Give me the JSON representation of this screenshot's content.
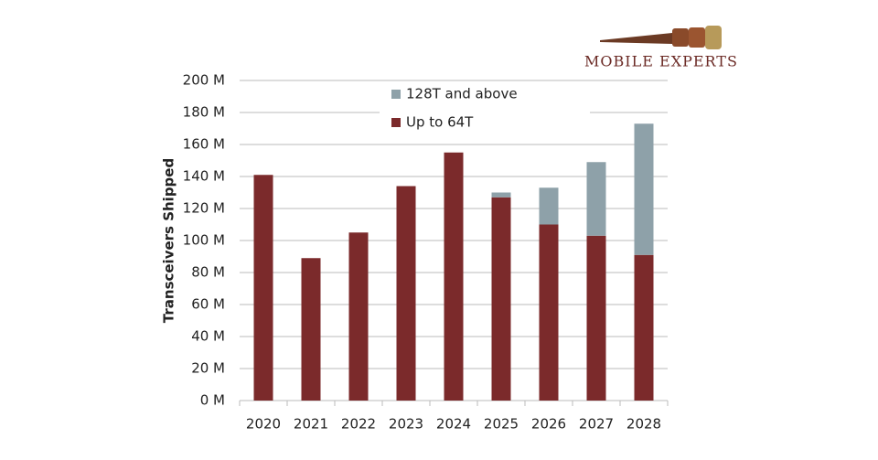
{
  "logo": "MOBILE EXPERTS",
  "chart_data": {
    "type": "bar",
    "stacked": true,
    "y_label": "Transceivers Shipped",
    "categories": [
      "2020",
      "2021",
      "2022",
      "2023",
      "2024",
      "2025",
      "2026",
      "2027",
      "2028"
    ],
    "series": [
      {
        "name": "Up to 64T",
        "color": "#7b2a2b",
        "values": [
          141,
          89,
          105,
          134,
          155,
          127,
          110,
          103,
          91
        ]
      },
      {
        "name": "128T and above",
        "color": "#8ea1a9",
        "values": [
          0,
          0,
          0,
          0,
          0,
          3,
          23,
          46,
          82
        ]
      }
    ],
    "ylim": [
      0,
      200
    ],
    "yticks": [
      {
        "value": 0,
        "label": "0 M"
      },
      {
        "value": 20,
        "label": "20 M"
      },
      {
        "value": 40,
        "label": "40 M"
      },
      {
        "value": 60,
        "label": "60 M"
      },
      {
        "value": 80,
        "label": "80 M"
      },
      {
        "value": 100,
        "label": "100 M"
      },
      {
        "value": 120,
        "label": "120 M"
      },
      {
        "value": 140,
        "label": "140 M"
      },
      {
        "value": 160,
        "label": "160 M"
      },
      {
        "value": 180,
        "label": "180 M"
      },
      {
        "value": 200,
        "label": "200 M"
      }
    ],
    "grid": true
  }
}
